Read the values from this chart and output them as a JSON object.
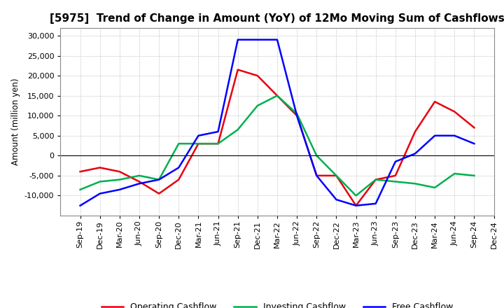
{
  "title": "[5975]  Trend of Change in Amount (YoY) of 12Mo Moving Sum of Cashflows",
  "ylabel": "Amount (million yen)",
  "x_labels": [
    "Sep-19",
    "Dec-19",
    "Mar-20",
    "Jun-20",
    "Sep-20",
    "Dec-20",
    "Mar-21",
    "Jun-21",
    "Sep-21",
    "Dec-21",
    "Mar-22",
    "Jun-22",
    "Sep-22",
    "Dec-22",
    "Mar-23",
    "Jun-23",
    "Sep-23",
    "Dec-23",
    "Mar-24",
    "Jun-24",
    "Sep-24",
    "Dec-24"
  ],
  "operating": [
    -4000,
    -3000,
    -4000,
    -6500,
    -9500,
    -6000,
    3000,
    3000,
    21500,
    20000,
    15000,
    10000,
    -5000,
    -5000,
    -12500,
    -6000,
    -5000,
    6000,
    13500,
    11000,
    7000,
    null
  ],
  "investing": [
    -8500,
    -6500,
    -6000,
    -5000,
    -6000,
    3000,
    3000,
    3000,
    6500,
    12500,
    15000,
    10500,
    0,
    -5000,
    -10000,
    -6000,
    -6500,
    -7000,
    -8000,
    -4500,
    -5000,
    null
  ],
  "free": [
    -12500,
    -9500,
    -8500,
    -7000,
    -6000,
    -3000,
    5000,
    6000,
    29000,
    29000,
    29000,
    10000,
    -5000,
    -11000,
    -12500,
    -12000,
    -1500,
    500,
    5000,
    5000,
    3000,
    null
  ],
  "operating_color": "#e8000d",
  "investing_color": "#00b050",
  "free_color": "#0000ff",
  "ylim": [
    -15000,
    32000
  ],
  "yticks": [
    -10000,
    -5000,
    0,
    5000,
    10000,
    15000,
    20000,
    25000,
    30000
  ],
  "background_color": "#ffffff",
  "grid_color": "#aaaaaa",
  "title_fontsize": 11,
  "legend_entries": [
    "Operating Cashflow",
    "Investing Cashflow",
    "Free Cashflow"
  ],
  "linewidth": 1.8
}
